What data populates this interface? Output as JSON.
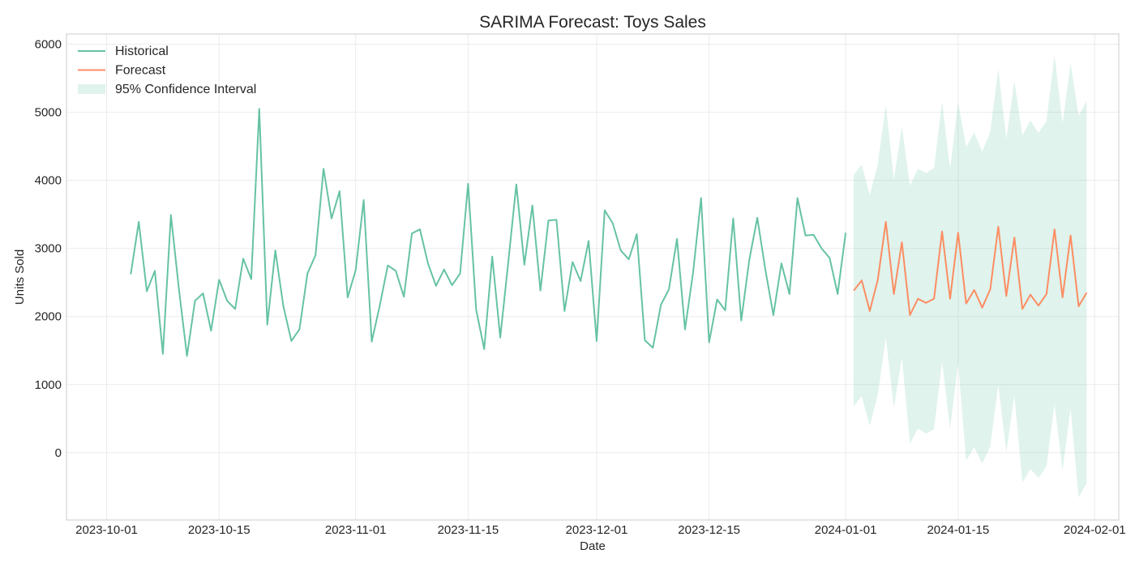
{
  "chart_data": {
    "type": "line",
    "title": "SARIMA Forecast: Toys Sales",
    "xlabel": "Date",
    "ylabel": "Units Sold",
    "xlim": [
      "2023-09-26",
      "2024-02-04"
    ],
    "ylim": [
      -990,
      6150
    ],
    "x_ticks": [
      "2023-10-01",
      "2023-10-15",
      "2023-11-01",
      "2023-11-15",
      "2023-12-01",
      "2023-12-15",
      "2024-01-01",
      "2024-01-15",
      "2024-02-01"
    ],
    "y_ticks": [
      0,
      1000,
      2000,
      3000,
      4000,
      5000,
      6000
    ],
    "grid": true,
    "legend_position": "top-left",
    "colors": {
      "historical": "#66c2a5",
      "forecast": "#fc8d62",
      "interval": "#66c2a5"
    },
    "series": [
      {
        "name": "Historical",
        "start_date": "2023-10-04",
        "values": [
          2620,
          3390,
          2370,
          2670,
          1450,
          3490,
          2400,
          1420,
          2230,
          2340,
          1790,
          2540,
          2230,
          2110,
          2850,
          2550,
          5050,
          1880,
          2970,
          2150,
          1640,
          1810,
          2630,
          2900,
          4170,
          3440,
          3840,
          2280,
          2680,
          3710,
          1630,
          2160,
          2750,
          2670,
          2290,
          3220,
          3280,
          2780,
          2450,
          2690,
          2460,
          2630,
          3950,
          2100,
          1520,
          2880,
          1690,
          2800,
          3940,
          2760,
          3630,
          2380,
          3410,
          3420,
          2080,
          2800,
          2520,
          3110,
          1640,
          3560,
          3370,
          2970,
          2840,
          3210,
          1650,
          1540,
          2170,
          2400,
          3140,
          1810,
          2640,
          3740,
          1620,
          2250,
          2090,
          3440,
          1940,
          2830,
          3450,
          2690,
          2020,
          2780,
          2330,
          3740,
          3190,
          3200,
          3000,
          2860,
          2330,
          3230
        ]
      },
      {
        "name": "Forecast",
        "start_date": "2024-01-02",
        "values": [
          2380,
          2530,
          2080,
          2540,
          3390,
          2330,
          3090,
          2020,
          2260,
          2200,
          2260,
          3250,
          2260,
          3230,
          2190,
          2390,
          2130,
          2400,
          3320,
          2300,
          3160,
          2110,
          2320,
          2160,
          2330,
          3280,
          2280,
          3190,
          2150,
          2350
        ],
        "lower": [
          680,
          830,
          390,
          850,
          1690,
          650,
          1400,
          130,
          350,
          280,
          340,
          1340,
          350,
          1320,
          -120,
          80,
          -160,
          90,
          1000,
          0,
          850,
          -440,
          -240,
          -370,
          -200,
          720,
          -260,
          650,
          -660,
          -450
        ],
        "upper": [
          4080,
          4230,
          3780,
          4240,
          5110,
          4010,
          4790,
          3920,
          4170,
          4110,
          4180,
          5160,
          4170,
          5150,
          4490,
          4700,
          4420,
          4710,
          5640,
          4600,
          5460,
          4660,
          4880,
          4700,
          4870,
          5840,
          4830,
          5720,
          4950,
          5170
        ]
      }
    ],
    "legend": [
      {
        "label": "Historical",
        "kind": "line",
        "color": "#66c2a5"
      },
      {
        "label": "Forecast",
        "kind": "line",
        "color": "#fc8d62"
      },
      {
        "label": "95% Confidence Interval",
        "kind": "area",
        "color": "#66c2a5"
      }
    ]
  }
}
